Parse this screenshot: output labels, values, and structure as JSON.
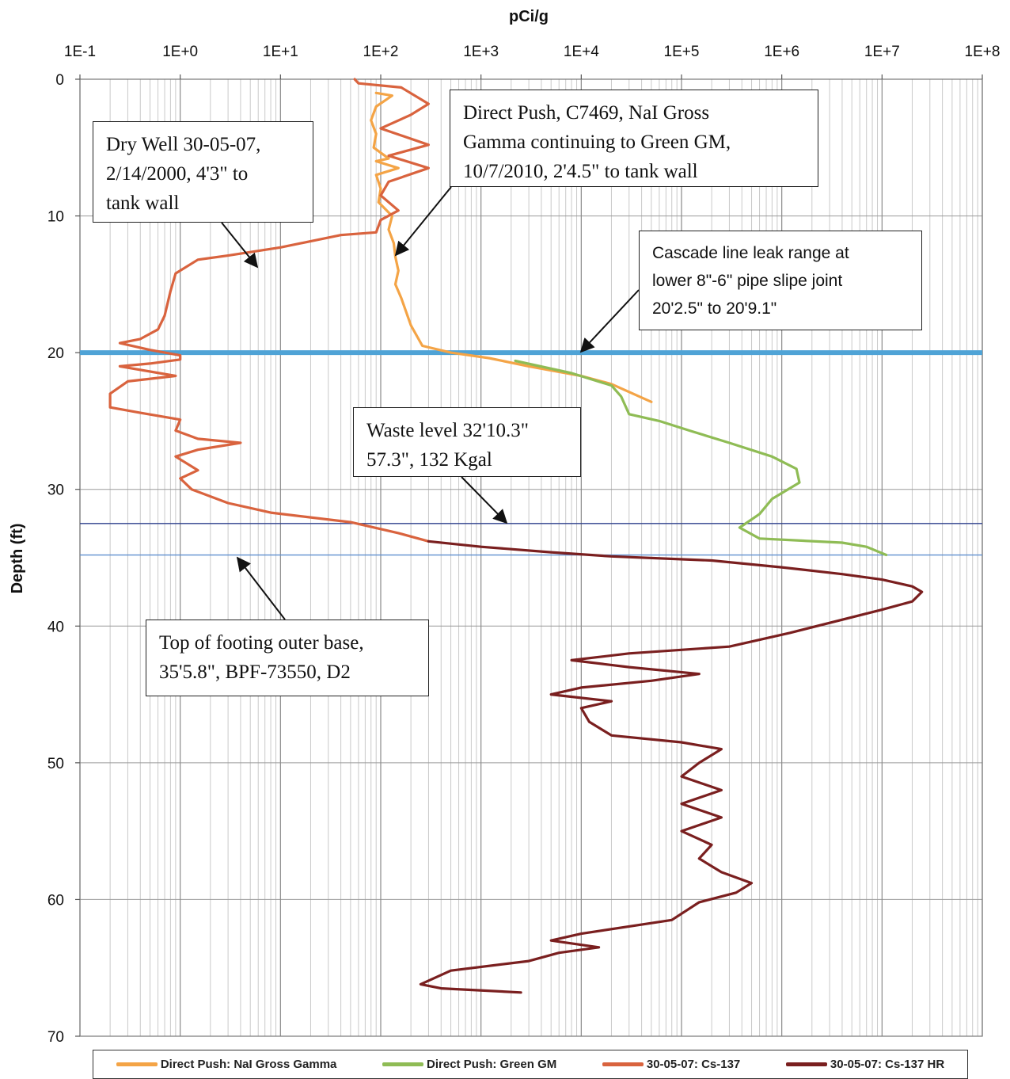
{
  "chart_data": {
    "type": "line",
    "title": "",
    "xlabel": "pCi/g",
    "ylabel": "Depth (ft)",
    "x_scale": "log",
    "xlim": [
      0.1,
      100000000
    ],
    "ylim": [
      0,
      70
    ],
    "y_inverted": true,
    "x_ticks": [
      "1E-1",
      "1E+0",
      "1E+1",
      "1E+2",
      "1E+3",
      "1E+4",
      "1E+5",
      "1E+6",
      "1E+7",
      "1E+8"
    ],
    "y_ticks": [
      "0",
      "10",
      "20",
      "30",
      "40",
      "50",
      "60",
      "70"
    ],
    "grid": true,
    "legend": "bottom",
    "series": [
      {
        "name": "Direct Push: NaI Gross Gamma",
        "color": "#f4a446",
        "points": [
          [
            90,
            1
          ],
          [
            130,
            1.2
          ],
          [
            90,
            2
          ],
          [
            80,
            3
          ],
          [
            90,
            4
          ],
          [
            85,
            5
          ],
          [
            120,
            5.8
          ],
          [
            90,
            6
          ],
          [
            150,
            6.5
          ],
          [
            90,
            7
          ],
          [
            100,
            8
          ],
          [
            95,
            9
          ],
          [
            130,
            10
          ],
          [
            120,
            11
          ],
          [
            135,
            12
          ],
          [
            140,
            13
          ],
          [
            150,
            14
          ],
          [
            140,
            15
          ],
          [
            160,
            16
          ],
          [
            200,
            18
          ],
          [
            260,
            19.5
          ],
          [
            500,
            20
          ],
          [
            1200,
            20.4
          ],
          [
            3000,
            21
          ],
          [
            10000,
            21.7
          ],
          [
            20000,
            22.3
          ],
          [
            50000,
            23.6
          ]
        ]
      },
      {
        "name": "Direct Push: Green GM",
        "color": "#8fbc55",
        "points": [
          [
            2200,
            20.6
          ],
          [
            8000,
            21.5
          ],
          [
            20000,
            22.4
          ],
          [
            25000,
            23.2
          ],
          [
            30000,
            24.5
          ],
          [
            60000,
            25
          ],
          [
            120000,
            25.7
          ],
          [
            300000,
            26.6
          ],
          [
            800000,
            27.6
          ],
          [
            1400000,
            28.5
          ],
          [
            1500000,
            29.5
          ],
          [
            800000,
            30.7
          ],
          [
            600000,
            31.8
          ],
          [
            380000,
            32.8
          ],
          [
            600000,
            33.6
          ],
          [
            4000000,
            33.9
          ],
          [
            7000000,
            34.2
          ],
          [
            11000000,
            34.8
          ]
        ]
      },
      {
        "name": "30-05-07: Cs-137",
        "color": "#d9633e",
        "points": [
          [
            55,
            0
          ],
          [
            60,
            0.3
          ],
          [
            160,
            0.6
          ],
          [
            300,
            1.8
          ],
          [
            200,
            2.6
          ],
          [
            100,
            3.6
          ],
          [
            300,
            4.8
          ],
          [
            120,
            5.6
          ],
          [
            300,
            6.5
          ],
          [
            120,
            7.5
          ],
          [
            100,
            8.5
          ],
          [
            150,
            9.6
          ],
          [
            100,
            10.3
          ],
          [
            90,
            11.2
          ],
          [
            40,
            11.4
          ],
          [
            10,
            12.3
          ],
          [
            3,
            12.9
          ],
          [
            1.5,
            13.2
          ],
          [
            0.9,
            14.2
          ],
          [
            0.8,
            15.5
          ],
          [
            0.7,
            17.3
          ],
          [
            0.6,
            18.3
          ],
          [
            0.4,
            19.0
          ],
          [
            0.25,
            19.3
          ],
          [
            0.5,
            19.8
          ],
          [
            1.0,
            20.2
          ],
          [
            1.0,
            20.5
          ],
          [
            0.5,
            20.8
          ],
          [
            0.25,
            21.0
          ],
          [
            0.9,
            21.7
          ],
          [
            0.3,
            22.1
          ],
          [
            0.2,
            23.0
          ],
          [
            0.2,
            24.0
          ],
          [
            0.4,
            24.4
          ],
          [
            1.0,
            24.9
          ],
          [
            0.9,
            25.7
          ],
          [
            1.5,
            26.3
          ],
          [
            4,
            26.6
          ],
          [
            1.5,
            27.1
          ],
          [
            0.9,
            27.6
          ],
          [
            1.5,
            28.6
          ],
          [
            1.0,
            29.2
          ],
          [
            1.3,
            30.0
          ],
          [
            3,
            31.0
          ],
          [
            8,
            31.7
          ],
          [
            50,
            32.4
          ],
          [
            150,
            33.2
          ],
          [
            300,
            33.8
          ]
        ]
      },
      {
        "name": "30-05-07: Cs-137 HR",
        "color": "#7a1f1f",
        "points": [
          [
            300,
            33.8
          ],
          [
            1000,
            34.2
          ],
          [
            5000,
            34.6
          ],
          [
            20000,
            34.9
          ],
          [
            200000,
            35.2
          ],
          [
            1000000,
            35.7
          ],
          [
            4000000,
            36.2
          ],
          [
            10000000,
            36.6
          ],
          [
            20000000,
            37.1
          ],
          [
            25000000,
            37.5
          ],
          [
            20000000,
            38.2
          ],
          [
            10000000,
            38.8
          ],
          [
            1200000,
            40.5
          ],
          [
            300000,
            41.5
          ],
          [
            30000,
            42.0
          ],
          [
            8000,
            42.5
          ],
          [
            30000,
            43.0
          ],
          [
            150000,
            43.5
          ],
          [
            50000,
            44.0
          ],
          [
            10000,
            44.5
          ],
          [
            5000,
            45.0
          ],
          [
            20000,
            45.5
          ],
          [
            10000,
            46.0
          ],
          [
            12000,
            47.0
          ],
          [
            20000,
            48.0
          ],
          [
            100000,
            48.5
          ],
          [
            250000,
            49.0
          ],
          [
            150000,
            50.0
          ],
          [
            100000,
            51.0
          ],
          [
            250000,
            52.0
          ],
          [
            100000,
            53.0
          ],
          [
            250000,
            54.0
          ],
          [
            100000,
            55.0
          ],
          [
            200000,
            56.0
          ],
          [
            150000,
            57.0
          ],
          [
            250000,
            58.0
          ],
          [
            500000,
            58.8
          ],
          [
            350000,
            59.5
          ],
          [
            150000,
            60.2
          ],
          [
            80000,
            61.5
          ],
          [
            10000,
            62.5
          ],
          [
            5000,
            63.0
          ],
          [
            15000,
            63.5
          ],
          [
            6000,
            63.9
          ],
          [
            3000,
            64.5
          ],
          [
            500,
            65.2
          ],
          [
            250,
            66.2
          ],
          [
            400,
            66.5
          ],
          [
            2500,
            66.8
          ]
        ]
      }
    ],
    "reference_lines": [
      {
        "depth": 20,
        "color": "#4fa3d6",
        "width": 6
      },
      {
        "depth": 32.5,
        "color": "#2c3e8c",
        "width": 1.4
      },
      {
        "depth": 34.8,
        "color": "#5f8fd0",
        "width": 1.4
      }
    ],
    "annotations": [
      {
        "id": "dry-well",
        "lines": [
          "Dry Well 30-05-07,",
          "2/14/2000, 4'3\" to",
          "tank wall"
        ]
      },
      {
        "id": "direct-push",
        "lines": [
          "Direct Push, C7469, NaI Gross",
          "Gamma continuing to Green GM,",
          "10/7/2010, 2'4.5\" to tank wall"
        ]
      },
      {
        "id": "cascade",
        "lines": [
          "Cascade line leak range at",
          "lower 8\"-6\" pipe slipe joint",
          "20'2.5\" to 20'9.1\""
        ]
      },
      {
        "id": "waste-level",
        "lines": [
          "Waste level 32'10.3\"",
          "57.3\", 132 Kgal"
        ]
      },
      {
        "id": "footing",
        "lines": [
          "Top of footing outer base,",
          "35'5.8\", BPF-73550, D2"
        ]
      }
    ]
  }
}
